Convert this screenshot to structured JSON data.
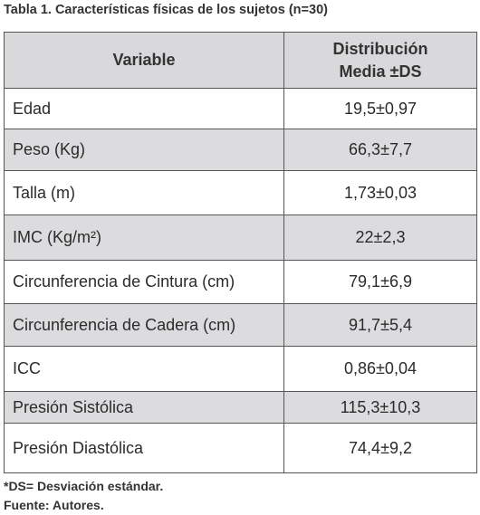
{
  "title": "Tabla 1. Características físicas de los sujetos (n=30)",
  "table": {
    "header": {
      "variable": "Variable",
      "value": [
        "Distribución",
        "Media ±DS"
      ]
    },
    "rows": [
      [
        "Edad",
        "19,5±0,97"
      ],
      [
        "Peso (Kg)",
        "66,3±7,7"
      ],
      [
        "Talla (m)",
        "1,73±0,03"
      ],
      [
        "IMC (Kg/m²)",
        "22±2,3"
      ],
      [
        "Circunferencia de Cintura (cm)",
        "79,1±6,9"
      ],
      [
        "Circunferencia de Cadera (cm)",
        "91,7±5,4"
      ],
      [
        "ICC",
        "0,86±0,04"
      ],
      [
        "Presión Sistólica",
        "115,3±10,3"
      ],
      [
        "Presión Diastólica",
        "74,4±9,2"
      ]
    ]
  },
  "footnotes": [
    "*DS= Desviación estándar.",
    "Fuente: Autores."
  ]
}
